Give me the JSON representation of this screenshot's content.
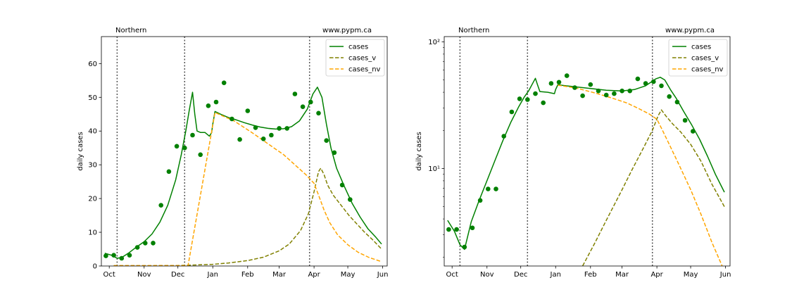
{
  "chart_data": [
    {
      "type": "line",
      "scale": "linear",
      "region_label": "Northern",
      "site_label": "www.pypm.ca",
      "ylabel": "daily cases",
      "xlabel": "",
      "ylim": [
        0,
        68
      ],
      "xlim": [
        "2020-09-24",
        "2021-06-05"
      ],
      "y_ticks": [
        0,
        10,
        20,
        30,
        40,
        50,
        60
      ],
      "y_tick_labels": [
        "0",
        "10",
        "20",
        "30",
        "40",
        "50",
        "60"
      ],
      "x_ticks": [
        "2020-10-01",
        "2020-11-01",
        "2020-12-01",
        "2021-01-01",
        "2021-02-01",
        "2021-03-01",
        "2021-04-01",
        "2021-05-01",
        "2021-06-01"
      ],
      "x_tick_labels": [
        "Oct",
        "Nov",
        "Dec",
        "Jan",
        "Feb",
        "Mar",
        "Apr",
        "May",
        "Jun"
      ],
      "vlines": [
        "2020-10-08",
        "2020-12-07",
        "2021-03-28"
      ],
      "legend_position": "top-right",
      "series": [
        {
          "name": "cases",
          "style": "solid",
          "color": "#008000",
          "points": [
            [
              "2020-09-27",
              3.8
            ],
            [
              "2020-10-03",
              3.2
            ],
            [
              "2020-10-08",
              2.3
            ],
            [
              "2020-10-12",
              2.5
            ],
            [
              "2020-10-18",
              3.8
            ],
            [
              "2020-10-25",
              5.6
            ],
            [
              "2020-11-01",
              7.2
            ],
            [
              "2020-11-08",
              9.5
            ],
            [
              "2020-11-15",
              13.0
            ],
            [
              "2020-11-22",
              18.0
            ],
            [
              "2020-11-29",
              25.5
            ],
            [
              "2020-12-04",
              33.0
            ],
            [
              "2020-12-08",
              40.0
            ],
            [
              "2020-12-11",
              46.0
            ],
            [
              "2020-12-14",
              51.5
            ],
            [
              "2020-12-16",
              45.0
            ],
            [
              "2020-12-18",
              40.0
            ],
            [
              "2020-12-21",
              39.6
            ],
            [
              "2020-12-25",
              39.6
            ],
            [
              "2020-12-29",
              38.5
            ],
            [
              "2020-12-31",
              39.5
            ],
            [
              "2021-01-01",
              42.0
            ],
            [
              "2021-01-03",
              45.8
            ],
            [
              "2021-01-08",
              45.0
            ],
            [
              "2021-01-15",
              44.0
            ],
            [
              "2021-01-22",
              43.3
            ],
            [
              "2021-01-29",
              42.5
            ],
            [
              "2021-02-05",
              41.8
            ],
            [
              "2021-02-12",
              41.2
            ],
            [
              "2021-02-19",
              40.8
            ],
            [
              "2021-02-26",
              40.6
            ],
            [
              "2021-03-05",
              40.7
            ],
            [
              "2021-03-12",
              41.3
            ],
            [
              "2021-03-19",
              43.0
            ],
            [
              "2021-03-26",
              46.5
            ],
            [
              "2021-03-31",
              51.0
            ],
            [
              "2021-04-04",
              53.0
            ],
            [
              "2021-04-08",
              50.0
            ],
            [
              "2021-04-12",
              42.0
            ],
            [
              "2021-04-16",
              35.0
            ],
            [
              "2021-04-21",
              29.0
            ],
            [
              "2021-04-28",
              23.5
            ],
            [
              "2021-05-05",
              18.5
            ],
            [
              "2021-05-12",
              14.5
            ],
            [
              "2021-05-19",
              11.0
            ],
            [
              "2021-05-26",
              8.5
            ],
            [
              "2021-05-31",
              6.5
            ]
          ]
        },
        {
          "name": "cases_v",
          "style": "dashed",
          "color": "#808000",
          "points": [
            [
              "2020-10-05",
              0.1
            ],
            [
              "2020-11-01",
              0.1
            ],
            [
              "2020-12-01",
              0.15
            ],
            [
              "2020-12-15",
              0.3
            ],
            [
              "2021-01-01",
              0.5
            ],
            [
              "2021-01-15",
              0.9
            ],
            [
              "2021-02-01",
              1.6
            ],
            [
              "2021-02-15",
              2.6
            ],
            [
              "2021-03-01",
              4.5
            ],
            [
              "2021-03-10",
              6.5
            ],
            [
              "2021-03-20",
              10.5
            ],
            [
              "2021-03-27",
              15.5
            ],
            [
              "2021-04-01",
              22.0
            ],
            [
              "2021-04-05",
              28.0
            ],
            [
              "2021-04-07",
              29.0
            ],
            [
              "2021-04-10",
              27.0
            ],
            [
              "2021-04-13",
              24.0
            ],
            [
              "2021-04-18",
              21.0
            ],
            [
              "2021-04-25",
              18.0
            ],
            [
              "2021-05-02",
              15.0
            ],
            [
              "2021-05-09",
              12.5
            ],
            [
              "2021-05-16",
              10.0
            ],
            [
              "2021-05-23",
              7.8
            ],
            [
              "2021-05-31",
              5.0
            ]
          ]
        },
        {
          "name": "cases_nv",
          "style": "dashed",
          "color": "#ffa500",
          "points": [
            [
              "2020-10-05",
              0.1
            ],
            [
              "2020-11-01",
              0.1
            ],
            [
              "2020-12-01",
              0.1
            ],
            [
              "2020-12-10",
              0.1
            ],
            [
              "2021-01-03",
              45.5
            ],
            [
              "2021-01-20",
              43.0
            ],
            [
              "2021-02-05",
              39.5
            ],
            [
              "2021-02-20",
              36.0
            ],
            [
              "2021-03-05",
              33.0
            ],
            [
              "2021-03-15",
              30.0
            ],
            [
              "2021-03-25",
              27.0
            ],
            [
              "2021-04-01",
              24.5
            ],
            [
              "2021-04-05",
              21.0
            ],
            [
              "2021-04-10",
              16.5
            ],
            [
              "2021-04-15",
              12.8
            ],
            [
              "2021-04-22",
              9.2
            ],
            [
              "2021-05-01",
              6.3
            ],
            [
              "2021-05-10",
              4.1
            ],
            [
              "2021-05-20",
              2.5
            ],
            [
              "2021-05-31",
              1.3
            ]
          ]
        }
      ],
      "scatter": {
        "name": "observed",
        "color": "#008000",
        "points": [
          [
            "2020-09-28",
            3.0
          ],
          [
            "2020-10-05",
            3.2
          ],
          [
            "2020-10-12",
            2.3
          ],
          [
            "2020-10-19",
            3.2
          ],
          [
            "2020-10-26",
            5.5
          ],
          [
            "2020-11-02",
            6.8
          ],
          [
            "2020-11-09",
            6.8
          ],
          [
            "2020-11-16",
            18.0
          ],
          [
            "2020-11-23",
            28.0
          ],
          [
            "2020-11-30",
            35.5
          ],
          [
            "2020-12-07",
            35.0
          ],
          [
            "2020-12-14",
            38.8
          ],
          [
            "2020-12-21",
            33.0
          ],
          [
            "2020-12-28",
            47.5
          ],
          [
            "2021-01-04",
            48.6
          ],
          [
            "2021-01-11",
            54.3
          ],
          [
            "2021-01-18",
            43.6
          ],
          [
            "2021-01-25",
            37.5
          ],
          [
            "2021-02-01",
            46.0
          ],
          [
            "2021-02-08",
            41.0
          ],
          [
            "2021-02-15",
            37.7
          ],
          [
            "2021-02-22",
            38.8
          ],
          [
            "2021-03-01",
            40.8
          ],
          [
            "2021-03-08",
            40.8
          ],
          [
            "2021-03-15",
            51.0
          ],
          [
            "2021-03-22",
            47.2
          ],
          [
            "2021-03-29",
            48.6
          ],
          [
            "2021-04-05",
            45.3
          ],
          [
            "2021-04-12",
            37.2
          ],
          [
            "2021-04-19",
            33.6
          ],
          [
            "2021-04-26",
            24.0
          ],
          [
            "2021-05-03",
            19.7
          ]
        ]
      }
    },
    {
      "type": "line",
      "scale": "log",
      "region_label": "Northern",
      "site_label": "www.pypm.ca",
      "ylabel": "daily cases",
      "xlabel": "",
      "ylim": [
        1.7,
        110
      ],
      "xlim": [
        "2020-09-24",
        "2021-06-05"
      ],
      "y_ticks": [
        10,
        100
      ],
      "y_tick_labels": [
        "10¹",
        "10²"
      ],
      "x_ticks": [
        "2020-10-01",
        "2020-11-01",
        "2020-12-01",
        "2021-01-01",
        "2021-02-01",
        "2021-03-01",
        "2021-04-01",
        "2021-05-01",
        "2021-06-01"
      ],
      "x_tick_labels": [
        "Oct",
        "Nov",
        "Dec",
        "Jan",
        "Feb",
        "Mar",
        "Apr",
        "May",
        "Jun"
      ],
      "vlines": [
        "2020-10-08",
        "2020-12-07",
        "2021-03-28"
      ],
      "legend_position": "top-right",
      "series": [
        {
          "name": "cases",
          "style": "solid",
          "color": "#008000",
          "points": [
            [
              "2020-09-27",
              3.9
            ],
            [
              "2020-10-03",
              3.2
            ],
            [
              "2020-10-08",
              2.5
            ],
            [
              "2020-10-12",
              2.3
            ],
            [
              "2020-10-18",
              3.8
            ],
            [
              "2020-10-25",
              5.6
            ],
            [
              "2020-11-01",
              8.0
            ],
            [
              "2020-11-08",
              11.5
            ],
            [
              "2020-11-15",
              16.5
            ],
            [
              "2020-11-22",
              23.0
            ],
            [
              "2020-11-29",
              30.5
            ],
            [
              "2020-12-04",
              36.5
            ],
            [
              "2020-12-08",
              41.0
            ],
            [
              "2020-12-11",
              46.0
            ],
            [
              "2020-12-14",
              51.5
            ],
            [
              "2020-12-16",
              45.5
            ],
            [
              "2020-12-18",
              40.5
            ],
            [
              "2020-12-25",
              40.0
            ],
            [
              "2020-12-31",
              39.0
            ],
            [
              "2021-01-01",
              42.0
            ],
            [
              "2021-01-03",
              45.8
            ],
            [
              "2021-01-10",
              45.0
            ],
            [
              "2021-01-20",
              44.0
            ],
            [
              "2021-02-01",
              42.8
            ],
            [
              "2021-02-15",
              41.5
            ],
            [
              "2021-03-01",
              41.0
            ],
            [
              "2021-03-12",
              42.0
            ],
            [
              "2021-03-22",
              45.0
            ],
            [
              "2021-03-31",
              51.0
            ],
            [
              "2021-04-04",
              52.5
            ],
            [
              "2021-04-08",
              50.0
            ],
            [
              "2021-04-13",
              42.0
            ],
            [
              "2021-04-18",
              36.0
            ],
            [
              "2021-04-25",
              28.0
            ],
            [
              "2021-05-02",
              22.0
            ],
            [
              "2021-05-09",
              17.0
            ],
            [
              "2021-05-16",
              12.5
            ],
            [
              "2021-05-23",
              9.0
            ],
            [
              "2021-05-31",
              6.5
            ]
          ]
        },
        {
          "name": "cases_v",
          "style": "dashed",
          "color": "#808000",
          "points": [
            [
              "2021-01-25",
              1.7
            ],
            [
              "2021-02-05",
              2.6
            ],
            [
              "2021-02-15",
              3.9
            ],
            [
              "2021-03-01",
              6.8
            ],
            [
              "2021-03-10",
              9.8
            ],
            [
              "2021-03-20",
              14.5
            ],
            [
              "2021-03-28",
              20.0
            ],
            [
              "2021-04-02",
              26.0
            ],
            [
              "2021-04-05",
              29.0
            ],
            [
              "2021-04-09",
              26.0
            ],
            [
              "2021-04-15",
              22.5
            ],
            [
              "2021-04-22",
              19.5
            ],
            [
              "2021-05-01",
              15.5
            ],
            [
              "2021-05-10",
              11.5
            ],
            [
              "2021-05-20",
              7.5
            ],
            [
              "2021-05-31",
              5.0
            ]
          ]
        },
        {
          "name": "cases_nv",
          "style": "dashed",
          "color": "#ffa500",
          "points": [
            [
              "2021-01-03",
              45.5
            ],
            [
              "2021-01-20",
              43.0
            ],
            [
              "2021-02-05",
              39.5
            ],
            [
              "2021-02-20",
              36.0
            ],
            [
              "2021-03-05",
              33.0
            ],
            [
              "2021-03-15",
              30.0
            ],
            [
              "2021-03-25",
              27.0
            ],
            [
              "2021-04-01",
              24.5
            ],
            [
              "2021-04-06",
              20.0
            ],
            [
              "2021-04-12",
              15.5
            ],
            [
              "2021-04-20",
              11.0
            ],
            [
              "2021-05-01",
              6.8
            ],
            [
              "2021-05-10",
              4.4
            ],
            [
              "2021-05-20",
              2.6
            ],
            [
              "2021-05-29",
              1.7
            ]
          ]
        }
      ],
      "scatter": {
        "name": "observed",
        "color": "#008000",
        "points": [
          [
            "2020-09-28",
            3.3
          ],
          [
            "2020-10-05",
            3.3
          ],
          [
            "2020-10-12",
            2.4
          ],
          [
            "2020-10-19",
            3.4
          ],
          [
            "2020-10-26",
            5.6
          ],
          [
            "2020-11-02",
            6.9
          ],
          [
            "2020-11-09",
            6.9
          ],
          [
            "2020-11-16",
            18.0
          ],
          [
            "2020-11-23",
            28.0
          ],
          [
            "2020-11-30",
            35.5
          ],
          [
            "2020-12-07",
            35.0
          ],
          [
            "2020-12-14",
            39.0
          ],
          [
            "2020-12-21",
            33.0
          ],
          [
            "2020-12-28",
            47.0
          ],
          [
            "2021-01-04",
            48.0
          ],
          [
            "2021-01-11",
            54.0
          ],
          [
            "2021-01-18",
            43.5
          ],
          [
            "2021-01-25",
            37.5
          ],
          [
            "2021-02-01",
            46.0
          ],
          [
            "2021-02-08",
            41.0
          ],
          [
            "2021-02-15",
            38.0
          ],
          [
            "2021-02-22",
            39.0
          ],
          [
            "2021-03-01",
            41.0
          ],
          [
            "2021-03-08",
            41.0
          ],
          [
            "2021-03-15",
            51.0
          ],
          [
            "2021-03-22",
            47.0
          ],
          [
            "2021-03-29",
            48.5
          ],
          [
            "2021-04-05",
            45.0
          ],
          [
            "2021-04-12",
            37.0
          ],
          [
            "2021-04-19",
            33.5
          ],
          [
            "2021-04-26",
            24.0
          ],
          [
            "2021-05-03",
            19.7
          ]
        ]
      }
    }
  ]
}
